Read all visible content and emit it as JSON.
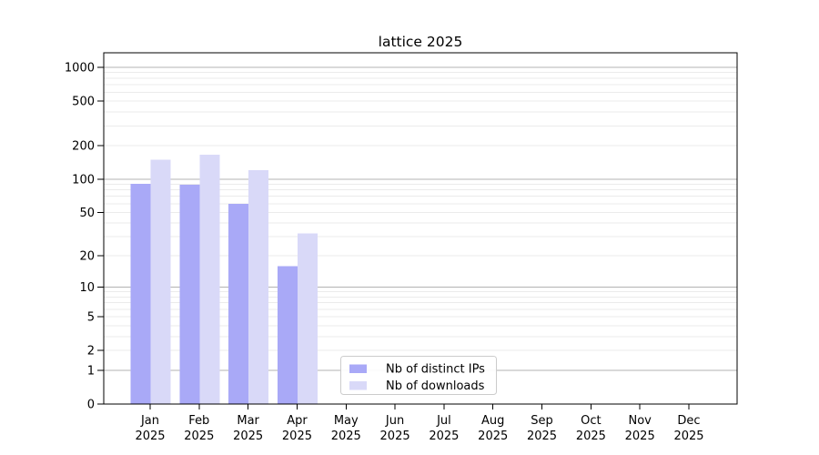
{
  "chart_data": {
    "type": "bar",
    "title": "lattice 2025",
    "categories": [
      "Jan",
      "Feb",
      "Mar",
      "Apr",
      "May",
      "Jun",
      "Jul",
      "Aug",
      "Sep",
      "Oct",
      "Nov",
      "Dec"
    ],
    "x_tick_year": "2025",
    "series": [
      {
        "name": "Nb of distinct IPs",
        "color": "#a9a9f7",
        "values": [
          91,
          89,
          60,
          16,
          0,
          0,
          0,
          0,
          0,
          0,
          0,
          0
        ]
      },
      {
        "name": "Nb of downloads",
        "color": "#d9d9f8",
        "values": [
          150,
          165,
          120,
          32,
          0,
          0,
          0,
          0,
          0,
          0,
          0,
          0
        ]
      }
    ],
    "xlabel": "",
    "ylabel": "",
    "y_scale": "log10(1+v)",
    "y_ticks": [
      0,
      1,
      2,
      5,
      10,
      20,
      50,
      100,
      200,
      500,
      1000
    ],
    "y_minor_grid": [
      3,
      4,
      6,
      7,
      8,
      9,
      30,
      40,
      60,
      70,
      80,
      90,
      300,
      400,
      600,
      700,
      800,
      900
    ],
    "ylim": [
      0,
      1360
    ],
    "grid": "on",
    "legend_position": "lower-center",
    "colors": {
      "axis": "#000000",
      "grid_major": "#b3b3b3",
      "grid_minor": "#ebebeb",
      "legend_border": "#cccccc",
      "background": "#ffffff"
    }
  }
}
